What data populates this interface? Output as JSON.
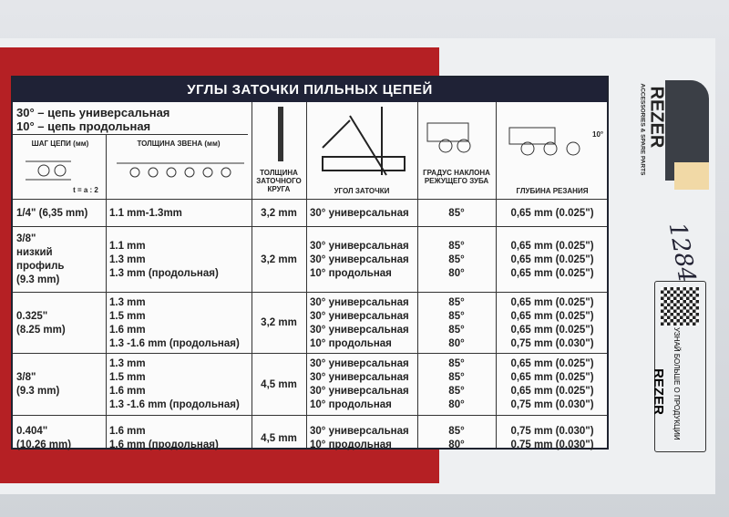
{
  "title": "УГЛЫ ЗАТОЧКИ ПИЛЬНЫХ ЦЕПЕЙ",
  "legend": [
    "30° – цепь универсальная",
    "10° – цепь продольная"
  ],
  "headers": {
    "pitch": "ШАГ ЦЕПИ (мм)",
    "pitch_formula": "t = a : 2",
    "gauge": "ТОЛЩИНА ЗВЕНА (мм)",
    "file": "ТОЛЩИНА ЗАТОЧНОГО КРУГА",
    "angle": "УГОЛ ЗАТОЧКИ",
    "tooth": "ГРАДУС НАКЛОНА РЕЖУЩЕГО ЗУБА",
    "depth": "ГЛУБИНА РЕЗАНИЯ",
    "depth_angle": "10°"
  },
  "rows": [
    {
      "pitch": "1/4\" (6,35 mm)",
      "gauge": [
        "1.1 mm-1.3mm"
      ],
      "file": "3,2 mm",
      "angle": [
        "30° универсальная"
      ],
      "tooth": [
        "85°"
      ],
      "depth": [
        "0,65 mm (0.025\")"
      ]
    },
    {
      "pitch": "3/8\"\nнизкий\nпрофиль\n(9.3 mm)",
      "gauge": [
        "1.1 mm",
        "1.3 mm",
        "1.3 mm (продольная)"
      ],
      "file": "3,2 mm",
      "angle": [
        "30° универсальная",
        "30° универсальная",
        "10° продольная"
      ],
      "tooth": [
        "85°",
        "85°",
        "80°"
      ],
      "depth": [
        "0,65 mm (0.025\")",
        "0,65 mm (0.025\")",
        "0,65 mm (0.025\")"
      ]
    },
    {
      "pitch": "0.325\"\n(8.25 mm)",
      "gauge": [
        "1.3 mm",
        "1.5 mm",
        "1.6 mm",
        "1.3 -1.6 mm (продольная)"
      ],
      "file": "3,2 mm",
      "angle": [
        "30° универсальная",
        "30° универсальная",
        "30° универсальная",
        "10° продольная"
      ],
      "tooth": [
        "85°",
        "85°",
        "85°",
        "80°"
      ],
      "depth": [
        "0,65 mm (0.025\")",
        "0,65 mm (0.025\")",
        "0,65 mm (0.025\")",
        "0,75 mm (0.030\")"
      ]
    },
    {
      "pitch": "3/8\"\n(9.3 mm)",
      "gauge": [
        "1.3 mm",
        "1.5 mm",
        "1.6 mm",
        "1.3 -1.6 mm (продольная)"
      ],
      "file": "4,5 mm",
      "angle": [
        "30° универсальная",
        "30° универсальная",
        "30° универсальная",
        "10° продольная"
      ],
      "tooth": [
        "85°",
        "85°",
        "85°",
        "80°"
      ],
      "depth": [
        "0,65 mm (0.025\")",
        "0,65 mm (0.025\")",
        "0,65 mm (0.025\")",
        "0,75 mm (0.030\")"
      ]
    },
    {
      "pitch": "0.404\"\n(10.26 mm)",
      "gauge": [
        "1.6 mm",
        "1.6 mm (продольная)"
      ],
      "file": "4,5 mm",
      "angle": [
        "30° универсальная",
        "10° продольная"
      ],
      "tooth": [
        "85°",
        "80°"
      ],
      "depth": [
        "0,75 mm (0.030\")",
        "0,75 mm (0.030\")"
      ]
    }
  ],
  "brand": {
    "name": "REZER",
    "tagline": "ACCESSORIES & SPARE PARTS",
    "handwritten": "1284",
    "qr_text": "УЗНАЙ БОЛЬШЕ О ПРОДУКЦИИ",
    "qr_brand": "REZER"
  },
  "colors": {
    "red": "#b52024",
    "navy": "#1f2236"
  }
}
